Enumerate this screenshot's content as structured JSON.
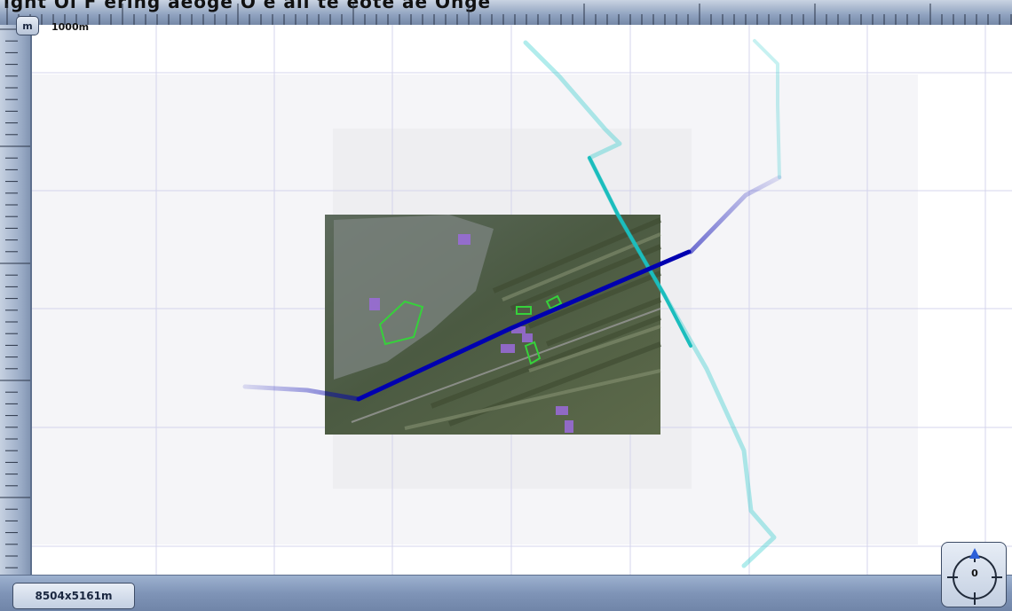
{
  "app": {
    "partial_title": "ight Ol  F  ering  aeoge  O  e  all te eote  ae  Onge"
  },
  "controls": {
    "unit_button": "m",
    "scale_label": "1000m"
  },
  "status": {
    "map_size": "8504x5161m"
  },
  "compass": {
    "heading": "0",
    "icon": "compass-icon"
  },
  "map": {
    "layers": [
      {
        "name": "aerial-photo",
        "icon": "image-icon"
      },
      {
        "name": "blue-route",
        "color": "#0000b0"
      },
      {
        "name": "cyan-route",
        "color": "#20c8c8"
      },
      {
        "name": "green-parcels",
        "color": "#36d13b"
      },
      {
        "name": "purple-buildings",
        "color": "#9b6bdc"
      }
    ]
  },
  "colors": {
    "ruler": "#8fa2bf",
    "grid": "#c8c8e8",
    "route_blue": "#0000b0",
    "route_cyan": "#20c8c8"
  }
}
